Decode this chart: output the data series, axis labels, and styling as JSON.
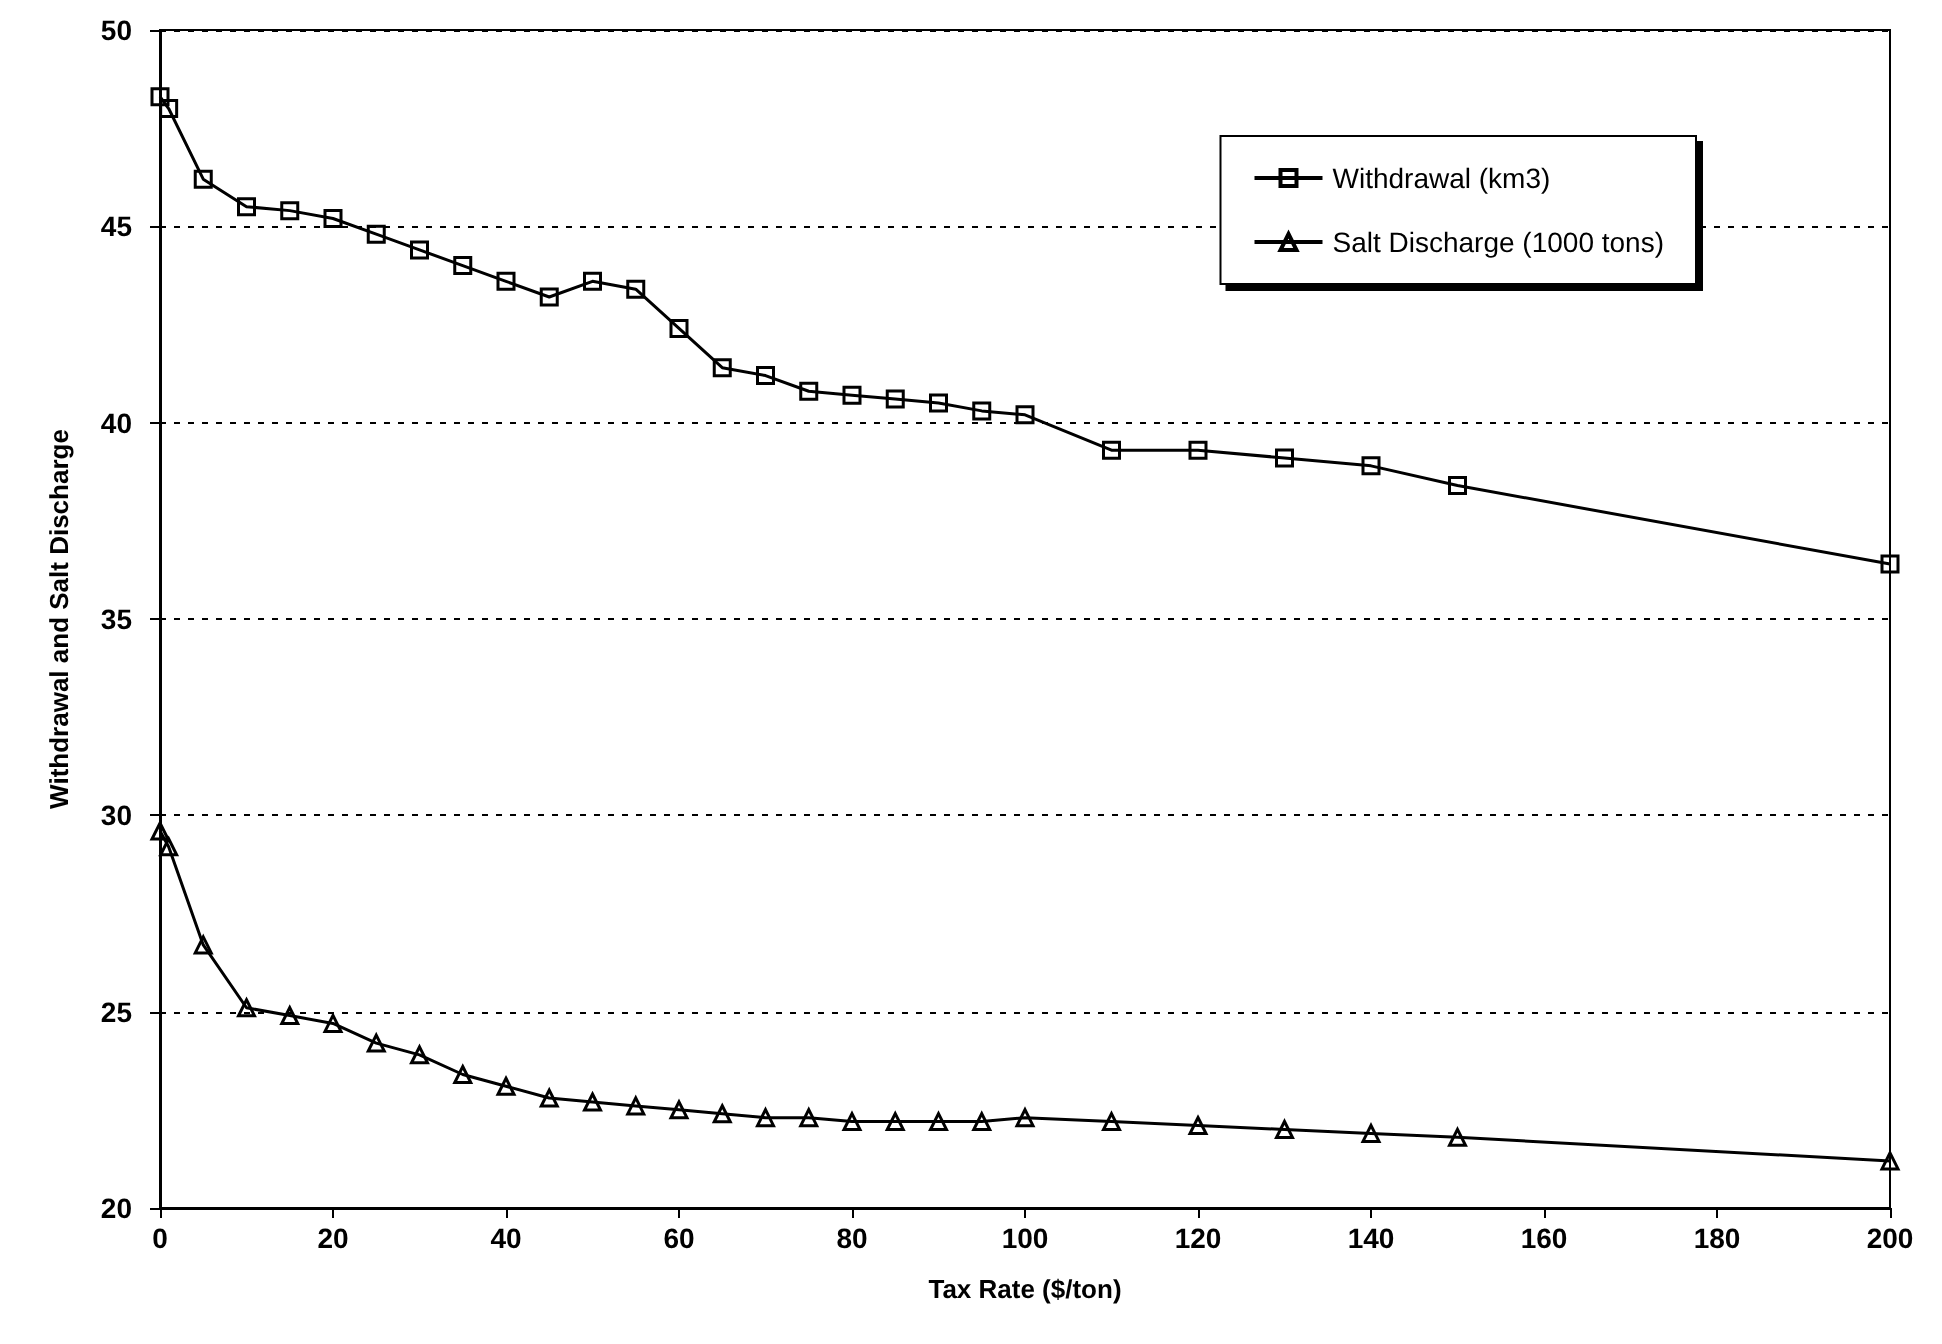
{
  "chart_data": {
    "type": "line",
    "xlabel": "Tax Rate ($/ton)",
    "ylabel": "Withdrawal and Salt Discharge",
    "x": [
      0,
      1,
      5,
      10,
      15,
      20,
      25,
      30,
      35,
      40,
      45,
      50,
      55,
      60,
      65,
      70,
      75,
      80,
      85,
      90,
      95,
      100,
      110,
      120,
      130,
      140,
      150,
      200
    ],
    "series": [
      {
        "name": "Withdrawal (km3)",
        "color": "#000000",
        "marker": "square",
        "values": [
          48.3,
          48.0,
          46.2,
          45.5,
          45.4,
          45.2,
          44.8,
          44.4,
          44.0,
          43.6,
          43.2,
          43.6,
          43.4,
          42.4,
          41.4,
          41.2,
          40.8,
          40.7,
          40.6,
          40.5,
          40.3,
          40.2,
          39.3,
          39.3,
          39.1,
          38.9,
          38.4,
          36.4
        ]
      },
      {
        "name": "Salt Discharge (1000 tons)",
        "color": "#000000",
        "marker": "triangle",
        "values": [
          29.6,
          29.2,
          26.7,
          25.1,
          24.9,
          24.7,
          24.2,
          23.9,
          23.4,
          23.1,
          22.8,
          22.7,
          22.6,
          22.5,
          22.4,
          22.3,
          22.3,
          22.2,
          22.2,
          22.2,
          22.2,
          22.3,
          22.2,
          22.1,
          22.0,
          21.9,
          21.8,
          21.2
        ]
      }
    ],
    "xlim": [
      0,
      200
    ],
    "xticks": [
      0,
      20,
      40,
      60,
      80,
      100,
      120,
      140,
      160,
      180,
      200
    ],
    "ylim": [
      20,
      50
    ],
    "yticks": [
      20,
      25,
      30,
      35,
      40,
      45,
      50
    ],
    "grid": "y",
    "legend": "top right",
    "line_style": "solid"
  }
}
